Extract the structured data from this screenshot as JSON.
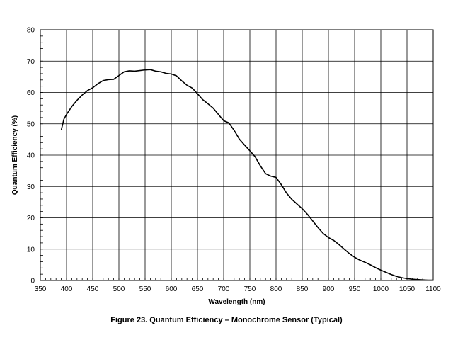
{
  "caption": "Figure 23. Quantum Efficiency – Monochrome Sensor (Typical)",
  "chart_data": {
    "type": "line",
    "title": "",
    "xlabel": "Wavelength (nm)",
    "ylabel": "Quantum Efficiency (%)",
    "xlim": [
      350,
      1100
    ],
    "ylim": [
      0,
      80
    ],
    "x_ticks": [
      350,
      400,
      450,
      500,
      550,
      600,
      650,
      700,
      750,
      800,
      850,
      900,
      950,
      1000,
      1050,
      1100
    ],
    "y_ticks": [
      0,
      10,
      20,
      30,
      40,
      50,
      60,
      70,
      80
    ],
    "x_tick_labels": [
      "350",
      "400",
      "450",
      "500",
      "550",
      "600",
      "650",
      "700",
      "750",
      "800",
      "850",
      "900",
      "950",
      "1000",
      "1050",
      "1100"
    ],
    "y_tick_labels": [
      "0",
      "10",
      "20",
      "30",
      "40",
      "50",
      "60",
      "70",
      "80"
    ],
    "grid": true,
    "line_color": "#000000",
    "series": [
      {
        "x": [
          390,
          395,
          400,
          410,
          420,
          430,
          440,
          450,
          460,
          470,
          480,
          490,
          500,
          510,
          520,
          530,
          540,
          550,
          560,
          570,
          580,
          590,
          600,
          610,
          620,
          630,
          640,
          650,
          660,
          670,
          680,
          690,
          700,
          710,
          720,
          730,
          740,
          750,
          760,
          770,
          780,
          790,
          800,
          810,
          820,
          830,
          840,
          850,
          860,
          870,
          880,
          890,
          900,
          910,
          920,
          930,
          940,
          950,
          960,
          970,
          980,
          990,
          1000,
          1010,
          1020,
          1030,
          1040,
          1050,
          1060,
          1070,
          1080,
          1090,
          1100
        ],
        "y": [
          48,
          51.5,
          53,
          55.5,
          57.5,
          59.2,
          60.6,
          61.5,
          62.8,
          63.8,
          64.1,
          64.2,
          65.4,
          66.6,
          66.9,
          66.8,
          67.0,
          67.2,
          67.3,
          66.8,
          66.6,
          66.1,
          65.9,
          65.3,
          63.7,
          62.3,
          61.4,
          59.6,
          57.7,
          56.4,
          55.0,
          53.0,
          51.0,
          50.3,
          47.9,
          45.1,
          43.2,
          41.4,
          39.5,
          36.6,
          34.1,
          33.3,
          32.9,
          30.6,
          27.9,
          25.9,
          24.4,
          22.9,
          21.1,
          19.0,
          16.9,
          15.0,
          13.7,
          12.8,
          11.5,
          10.0,
          8.6,
          7.4,
          6.5,
          5.8,
          5.0,
          4.1,
          3.3,
          2.6,
          1.9,
          1.3,
          0.9,
          0.6,
          0.4,
          0.3,
          0.2,
          0.1,
          0.1
        ]
      }
    ]
  }
}
